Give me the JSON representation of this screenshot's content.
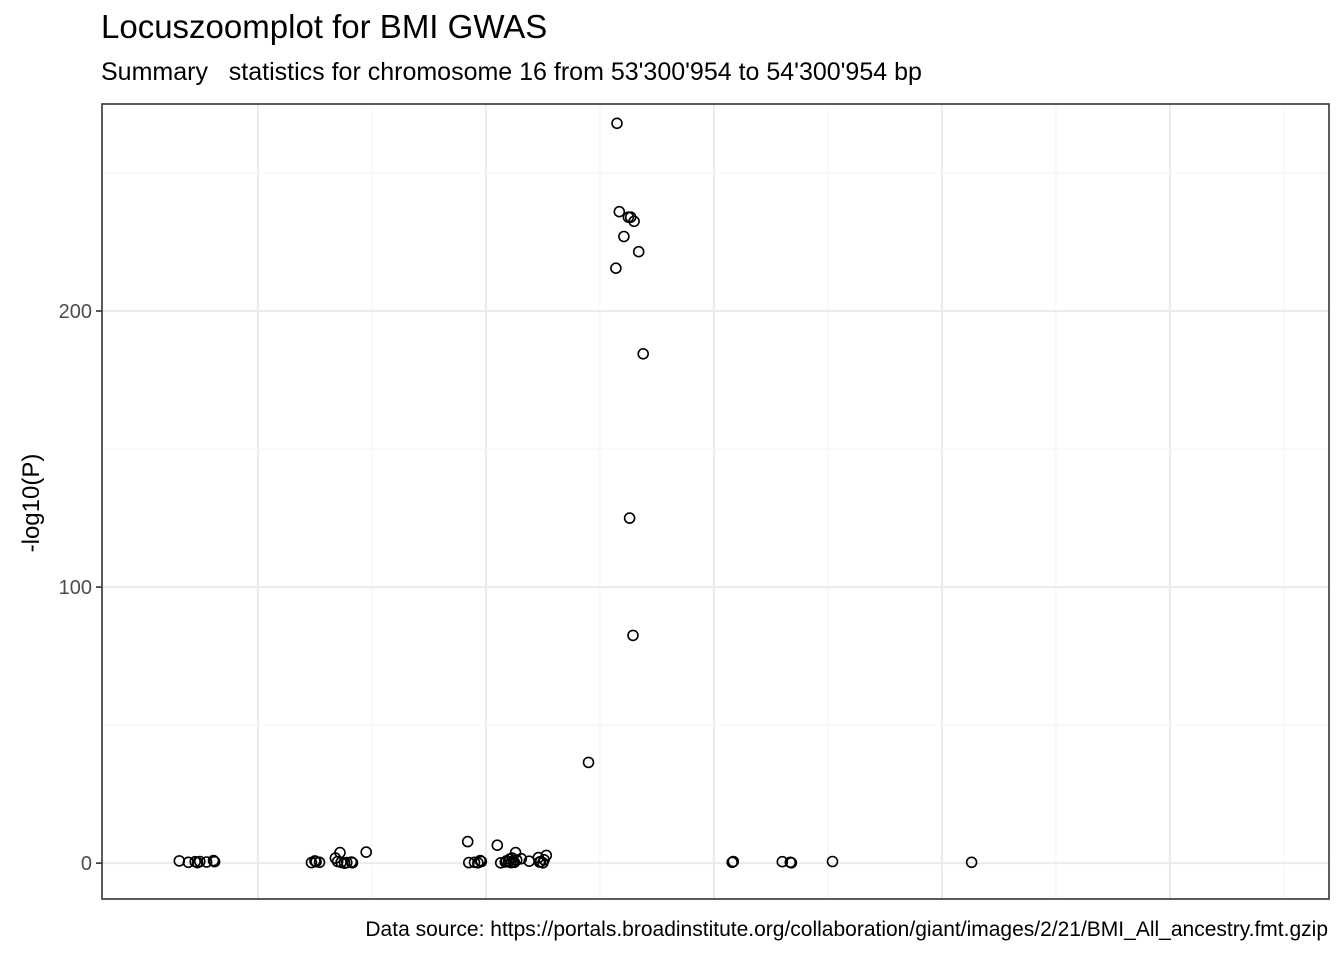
{
  "chart_data": {
    "type": "scatter",
    "title": "Locuszoomplot for BMI GWAS",
    "subtitle": "Summary   statistics for chromosome 16 from 53'300'954 to 54'300'954 bp",
    "caption": "Data source: https://portals.broadinstitute.org/collaboration/giant/images/2/21/BMI_All_ancestry.fmt.gzip",
    "xlabel": "",
    "ylabel": "-log10(P)",
    "xlim": [
      53300954,
      54300954
    ],
    "ylim": [
      -13,
      275
    ],
    "y_ticks": [
      0,
      100,
      200
    ],
    "y_tick_labels": [
      "0",
      "100",
      "200"
    ],
    "x_tick_labels_shown": false,
    "grid": true,
    "theme": "bw",
    "colors": {
      "point_stroke": "#000000",
      "grid_major": "#ebebeb",
      "grid_minor": "#f5f5f5",
      "panel_border": "#333333"
    },
    "points": [
      {
        "x": 53331000,
        "y": 0.8
      },
      {
        "x": 53339000,
        "y": 0.3
      },
      {
        "x": 53345000,
        "y": 0.5
      },
      {
        "x": 53347000,
        "y": 0.2
      },
      {
        "x": 53349000,
        "y": 0.6
      },
      {
        "x": 53355000,
        "y": 0.4
      },
      {
        "x": 53361000,
        "y": 0.9
      },
      {
        "x": 53362000,
        "y": 0.5
      },
      {
        "x": 53447000,
        "y": 0.2
      },
      {
        "x": 53450000,
        "y": 0.8
      },
      {
        "x": 53451000,
        "y": 0.5
      },
      {
        "x": 53454000,
        "y": 0.3
      },
      {
        "x": 53468000,
        "y": 1.8
      },
      {
        "x": 53470000,
        "y": 0.6
      },
      {
        "x": 53472000,
        "y": 3.8
      },
      {
        "x": 53473000,
        "y": 0.3
      },
      {
        "x": 53476000,
        "y": 0.0
      },
      {
        "x": 53478000,
        "y": 0.2
      },
      {
        "x": 53482000,
        "y": 0.4
      },
      {
        "x": 53483000,
        "y": 0.1
      },
      {
        "x": 53495000,
        "y": 4.0
      },
      {
        "x": 53584000,
        "y": 7.8
      },
      {
        "x": 53585000,
        "y": 0.2
      },
      {
        "x": 53590000,
        "y": 0.3
      },
      {
        "x": 53593000,
        "y": 0.1
      },
      {
        "x": 53595000,
        "y": 0.9
      },
      {
        "x": 53596000,
        "y": 0.6
      },
      {
        "x": 53610000,
        "y": 6.5
      },
      {
        "x": 53613000,
        "y": 0.1
      },
      {
        "x": 53617000,
        "y": 0.4
      },
      {
        "x": 53618000,
        "y": 0.8
      },
      {
        "x": 53620000,
        "y": 0.6
      },
      {
        "x": 53621000,
        "y": 1.5
      },
      {
        "x": 53622000,
        "y": 0.2
      },
      {
        "x": 53623000,
        "y": 1.8
      },
      {
        "x": 53624000,
        "y": 0.6
      },
      {
        "x": 53625000,
        "y": 0.3
      },
      {
        "x": 53626000,
        "y": 3.8
      },
      {
        "x": 53627000,
        "y": 1.1
      },
      {
        "x": 53631000,
        "y": 1.6
      },
      {
        "x": 53638000,
        "y": 0.7
      },
      {
        "x": 53646000,
        "y": 2.0
      },
      {
        "x": 53647000,
        "y": 0.4
      },
      {
        "x": 53648000,
        "y": 0.5
      },
      {
        "x": 53650000,
        "y": 0.1
      },
      {
        "x": 53651000,
        "y": 1.2
      },
      {
        "x": 53653000,
        "y": 2.8
      },
      {
        "x": 53690000,
        "y": 36.5
      },
      {
        "x": 53714000,
        "y": 215.5
      },
      {
        "x": 53715000,
        "y": 268.0
      },
      {
        "x": 53717000,
        "y": 236.0
      },
      {
        "x": 53721000,
        "y": 227.0
      },
      {
        "x": 53725000,
        "y": 234.0
      },
      {
        "x": 53726000,
        "y": 125.0
      },
      {
        "x": 53727000,
        "y": 234.0
      },
      {
        "x": 53729000,
        "y": 82.5
      },
      {
        "x": 53730000,
        "y": 232.5
      },
      {
        "x": 53734000,
        "y": 221.5
      },
      {
        "x": 53738000,
        "y": 184.5
      },
      {
        "x": 53816000,
        "y": 0.3
      },
      {
        "x": 53817000,
        "y": 0.6
      },
      {
        "x": 53860000,
        "y": 0.5
      },
      {
        "x": 53867000,
        "y": 0.3
      },
      {
        "x": 53868000,
        "y": 0.1
      },
      {
        "x": 53904000,
        "y": 0.6
      },
      {
        "x": 54026000,
        "y": 0.3
      }
    ]
  }
}
